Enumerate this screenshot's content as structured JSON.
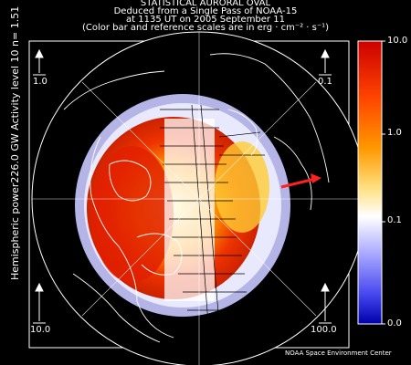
{
  "title": {
    "line1": "STATISTICAL AURORAL OVAL",
    "line2": "Deduced from a Single Pass of NOAA-15",
    "line3": "at 1135 UT on 2005 September 11",
    "line4": "(Color bar and reference scales are in erg · cm⁻² · s⁻¹)"
  },
  "sidebar": {
    "left_text": "Hemispheric power226.0 GW   Activity level 10  n=  1.51"
  },
  "reference_scales": {
    "top_left": "1.0",
    "top_right": "0.1",
    "bottom_left": "10.0",
    "bottom_right": "100.0"
  },
  "colorbar": {
    "ticks": [
      "10.0",
      "1.0",
      "0.1",
      "0.0"
    ],
    "colors": {
      "top": "#cc0000",
      "upper": "#ff6600",
      "mid_upper": "#ffcc00",
      "mid": "#ffffff",
      "lower": "#6666ff",
      "bottom": "#0000aa"
    }
  },
  "credit": "NOAA Space Environment Center",
  "map": {
    "direction_arrow_color": "#ff2020"
  }
}
